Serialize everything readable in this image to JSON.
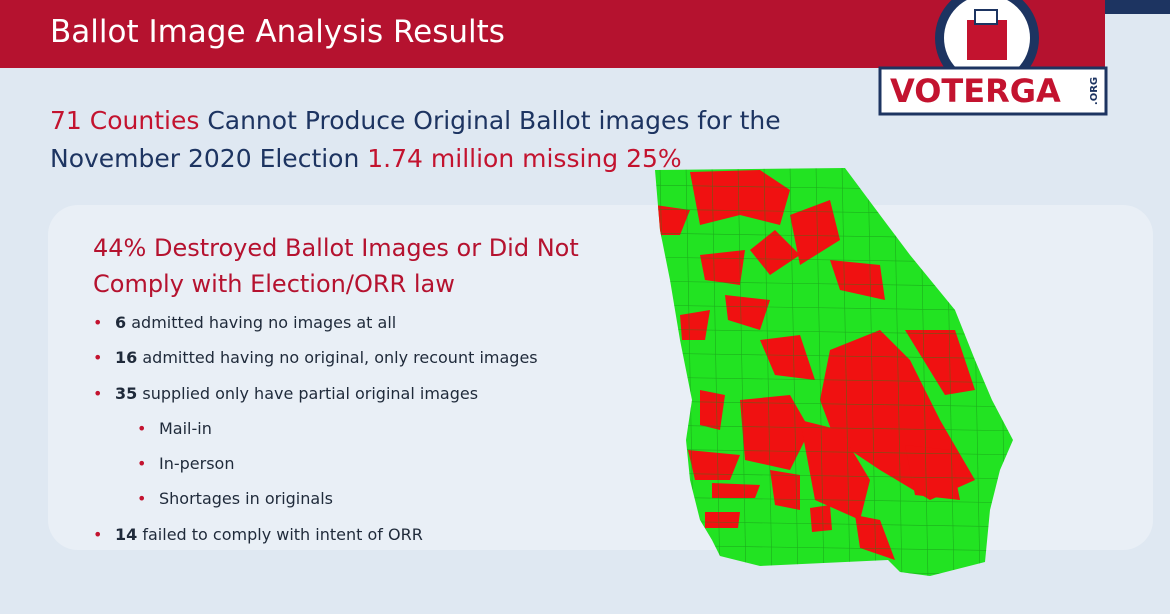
{
  "header": {
    "title": "Ballot Image Analysis Results"
  },
  "logo": {
    "name": "VOTERGA",
    "suffix": ".ORG"
  },
  "headline": {
    "red_lead": "71 Counties",
    "line1_rest": "Cannot Produce Original Ballot images for the",
    "line2_start": "November 2020 Election",
    "red_tail": "1.74 million missing 25%"
  },
  "subheading": "44% Destroyed Ballot Images or Did Not Comply with Election/ORR law",
  "bullets": [
    {
      "number": 6,
      "text": "admitted having no images at all"
    },
    {
      "number": 16,
      "text": "admitted having no original, only recount images"
    },
    {
      "number": 35,
      "text": "supplied only have partial original images",
      "sub_items": [
        "Mail-in",
        "In-person",
        "Shortages in originals"
      ]
    },
    {
      "number": 14,
      "text": "failed to comply with intent of ORR"
    }
  ]
}
